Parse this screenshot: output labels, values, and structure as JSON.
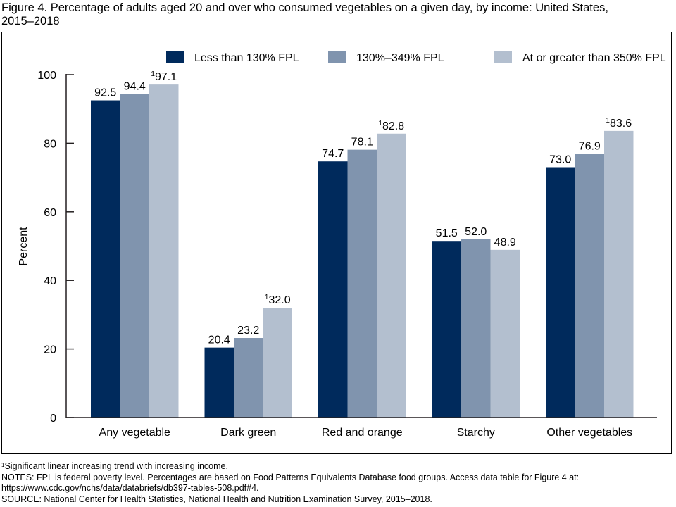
{
  "title_line1": "Figure 4. Percentage of adults aged 20 and over who consumed vegetables on a given day, by income: United States,",
  "title_line2": "2015–2018",
  "chart_data": {
    "type": "bar",
    "title": "Figure 4. Percentage of adults aged 20 and over who consumed vegetables on a given day, by income: United States, 2015–2018",
    "xlabel": "",
    "ylabel": "Percent",
    "ylim": [
      0,
      100
    ],
    "yticks": [
      0,
      20,
      40,
      60,
      80,
      100
    ],
    "grid": false,
    "legend_position": "top-right",
    "categories": [
      "Any vegetable",
      "Dark green",
      "Red and orange",
      "Starchy",
      "Other vegetables"
    ],
    "series": [
      {
        "name": "Less than 130% FPL",
        "color": "#002a5c",
        "values": [
          92.5,
          20.4,
          74.7,
          51.5,
          73.0
        ],
        "labels": [
          "92.5",
          "20.4",
          "74.7",
          "51.5",
          "73.0"
        ],
        "footnote": [
          false,
          false,
          false,
          false,
          false
        ]
      },
      {
        "name": "130%–349% FPL",
        "color": "#8094ae",
        "values": [
          94.4,
          23.2,
          78.1,
          52.0,
          76.9
        ],
        "labels": [
          "94.4",
          "23.2",
          "78.1",
          "52.0",
          "76.9"
        ],
        "footnote": [
          false,
          false,
          false,
          false,
          false
        ]
      },
      {
        "name": "At or greater than 350% FPL",
        "color": "#b3bfcf",
        "values": [
          97.1,
          32.0,
          82.8,
          48.9,
          83.6
        ],
        "labels": [
          "97.1",
          "32.0",
          "82.8",
          "48.9",
          "83.6"
        ],
        "footnote": [
          true,
          true,
          true,
          false,
          true
        ]
      }
    ],
    "footnote_marker": "1"
  },
  "notes": {
    "footnote_marker": "1",
    "footnote": "Significant linear increasing trend with increasing income.",
    "notes_line1": "NOTES: FPL is federal poverty level. Percentages are based on Food Patterns Equivalents Database food groups. Access data table for Figure 4 at:",
    "notes_line2": "https://www.cdc.gov/nchs/data/databriefs/db397-tables-508.pdf#4.",
    "source": "SOURCE: National Center for Health Statistics, National Health and Nutrition Examination Survey, 2015–2018."
  }
}
